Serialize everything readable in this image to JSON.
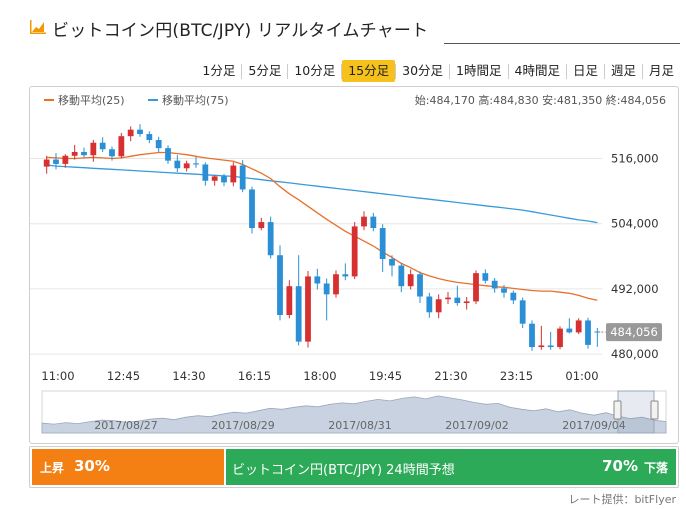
{
  "header": {
    "title": "ビットコイン円(BTC/JPY) リアルタイムチャート",
    "icon": "chart-icon",
    "accent_color": "#f39800"
  },
  "tabs": [
    {
      "label": "1分足",
      "active": false
    },
    {
      "label": "5分足",
      "active": false
    },
    {
      "label": "10分足",
      "active": false
    },
    {
      "label": "15分足",
      "active": true
    },
    {
      "label": "30分足",
      "active": false
    },
    {
      "label": "1時間足",
      "active": false
    },
    {
      "label": "4時間足",
      "active": false
    },
    {
      "label": "日足",
      "active": false
    },
    {
      "label": "週足",
      "active": false
    },
    {
      "label": "月足",
      "active": false
    }
  ],
  "ohlc_text": "始:484,170 高:484,830 安:481,350 終:484,056",
  "chart_data": {
    "type": "candlestick",
    "ylim": [
      478000,
      524000
    ],
    "y_ticks": [
      "516,000",
      "504,000",
      "492,000",
      "480,000"
    ],
    "y_tick_values": [
      516000,
      504000,
      492000,
      480000
    ],
    "x_ticks": [
      "11:00",
      "12:45",
      "14:30",
      "16:15",
      "18:00",
      "19:45",
      "21:30",
      "23:15",
      "01:00"
    ],
    "current_price_label": "484,056",
    "current_price": 484056,
    "legend": [
      {
        "name": "移動平均(25)",
        "color": "#e8702a"
      },
      {
        "name": "移動平均(75)",
        "color": "#3a9ad9"
      }
    ],
    "colors": {
      "up": "#d63031",
      "down": "#2b8fd6"
    },
    "candles": [
      {
        "o": 514500,
        "h": 516500,
        "l": 513200,
        "c": 515800
      },
      {
        "o": 515800,
        "h": 517000,
        "l": 514000,
        "c": 515000
      },
      {
        "o": 515000,
        "h": 516800,
        "l": 514300,
        "c": 516500
      },
      {
        "o": 516500,
        "h": 518500,
        "l": 515800,
        "c": 517200
      },
      {
        "o": 517200,
        "h": 518000,
        "l": 516200,
        "c": 516600
      },
      {
        "o": 516600,
        "h": 519400,
        "l": 515400,
        "c": 518900
      },
      {
        "o": 518900,
        "h": 519900,
        "l": 517200,
        "c": 517700
      },
      {
        "o": 517700,
        "h": 518200,
        "l": 515600,
        "c": 516400
      },
      {
        "o": 516400,
        "h": 520700,
        "l": 516000,
        "c": 520100
      },
      {
        "o": 520100,
        "h": 521900,
        "l": 519200,
        "c": 521300
      },
      {
        "o": 521300,
        "h": 522300,
        "l": 520000,
        "c": 520500
      },
      {
        "o": 520500,
        "h": 521000,
        "l": 518800,
        "c": 519400
      },
      {
        "o": 519400,
        "h": 520000,
        "l": 517200,
        "c": 517900
      },
      {
        "o": 517900,
        "h": 518400,
        "l": 515000,
        "c": 515600
      },
      {
        "o": 515600,
        "h": 516600,
        "l": 513500,
        "c": 514200
      },
      {
        "o": 514200,
        "h": 515600,
        "l": 513600,
        "c": 515100
      },
      {
        "o": 515100,
        "h": 516300,
        "l": 514300,
        "c": 514900
      },
      {
        "o": 514900,
        "h": 515300,
        "l": 511000,
        "c": 511900
      },
      {
        "o": 511900,
        "h": 512900,
        "l": 511000,
        "c": 512700
      },
      {
        "o": 512700,
        "h": 513200,
        "l": 510900,
        "c": 511600
      },
      {
        "o": 511600,
        "h": 515300,
        "l": 510900,
        "c": 514700
      },
      {
        "o": 514700,
        "h": 515700,
        "l": 509800,
        "c": 510300
      },
      {
        "o": 510300,
        "h": 510800,
        "l": 502200,
        "c": 503200
      },
      {
        "o": 503200,
        "h": 505100,
        "l": 502800,
        "c": 504300
      },
      {
        "o": 504300,
        "h": 505300,
        "l": 497600,
        "c": 498200
      },
      {
        "o": 498200,
        "h": 500000,
        "l": 486200,
        "c": 487200
      },
      {
        "o": 487200,
        "h": 493600,
        "l": 486600,
        "c": 492500
      },
      {
        "o": 492500,
        "h": 498200,
        "l": 481600,
        "c": 482300
      },
      {
        "o": 482300,
        "h": 495300,
        "l": 481200,
        "c": 494300
      },
      {
        "o": 494300,
        "h": 495700,
        "l": 491900,
        "c": 493000
      },
      {
        "o": 493000,
        "h": 493900,
        "l": 486200,
        "c": 491000
      },
      {
        "o": 491000,
        "h": 495400,
        "l": 490400,
        "c": 494700
      },
      {
        "o": 494700,
        "h": 496700,
        "l": 493600,
        "c": 494300
      },
      {
        "o": 494300,
        "h": 504300,
        "l": 493800,
        "c": 503500
      },
      {
        "o": 503500,
        "h": 506300,
        "l": 502800,
        "c": 505300
      },
      {
        "o": 505300,
        "h": 506000,
        "l": 502600,
        "c": 503200
      },
      {
        "o": 503200,
        "h": 503900,
        "l": 495100,
        "c": 497500
      },
      {
        "o": 497500,
        "h": 498200,
        "l": 494300,
        "c": 496300
      },
      {
        "o": 496300,
        "h": 496800,
        "l": 491400,
        "c": 492500
      },
      {
        "o": 492500,
        "h": 495600,
        "l": 491900,
        "c": 494700
      },
      {
        "o": 494700,
        "h": 495200,
        "l": 489400,
        "c": 490600
      },
      {
        "o": 490600,
        "h": 491300,
        "l": 486700,
        "c": 487700
      },
      {
        "o": 487700,
        "h": 491000,
        "l": 486600,
        "c": 490100
      },
      {
        "o": 490100,
        "h": 491400,
        "l": 489200,
        "c": 490400
      },
      {
        "o": 490400,
        "h": 492600,
        "l": 488900,
        "c": 489400
      },
      {
        "o": 489400,
        "h": 490500,
        "l": 488200,
        "c": 489700
      },
      {
        "o": 489700,
        "h": 495400,
        "l": 489200,
        "c": 494900
      },
      {
        "o": 494900,
        "h": 495600,
        "l": 493000,
        "c": 493500
      },
      {
        "o": 493500,
        "h": 494000,
        "l": 491300,
        "c": 492100
      },
      {
        "o": 492100,
        "h": 492700,
        "l": 490400,
        "c": 491300
      },
      {
        "o": 491300,
        "h": 491700,
        "l": 489200,
        "c": 489900
      },
      {
        "o": 489900,
        "h": 490400,
        "l": 484800,
        "c": 485600
      },
      {
        "o": 485600,
        "h": 486200,
        "l": 480600,
        "c": 481300
      },
      {
        "o": 481300,
        "h": 485200,
        "l": 480800,
        "c": 481600
      },
      {
        "o": 481600,
        "h": 484100,
        "l": 480800,
        "c": 481300
      },
      {
        "o": 481300,
        "h": 485100,
        "l": 480900,
        "c": 484700
      },
      {
        "o": 484700,
        "h": 486600,
        "l": 483800,
        "c": 484000
      },
      {
        "o": 484000,
        "h": 486600,
        "l": 483700,
        "c": 486200
      },
      {
        "o": 486200,
        "h": 486700,
        "l": 481000,
        "c": 481700
      },
      {
        "o": 484170,
        "h": 484830,
        "l": 481350,
        "c": 484056
      }
    ],
    "ma25": [
      516200,
      516100,
      516000,
      516000,
      516100,
      516200,
      516100,
      516000,
      516100,
      516400,
      516700,
      516900,
      517100,
      517100,
      516900,
      516700,
      516400,
      516100,
      515900,
      515700,
      515500,
      514900,
      514100,
      513300,
      512300,
      510800,
      509500,
      508400,
      507200,
      506000,
      504800,
      503700,
      502600,
      501700,
      500800,
      499900,
      498800,
      497800,
      496700,
      495900,
      495000,
      494400,
      493900,
      493500,
      493200,
      493000,
      492800,
      492600,
      492400,
      492300,
      492100,
      491900,
      491700,
      491600,
      491600,
      491400,
      491200,
      490800,
      490300,
      489900
    ],
    "ma75": [
      514800,
      514600,
      514500,
      514400,
      514300,
      514200,
      514100,
      514000,
      513900,
      513800,
      513700,
      513600,
      513500,
      513400,
      513300,
      513200,
      513100,
      513000,
      512900,
      512800,
      512700,
      512500,
      512300,
      512100,
      511900,
      511700,
      511500,
      511300,
      511100,
      510900,
      510700,
      510500,
      510300,
      510100,
      509900,
      509700,
      509500,
      509300,
      509100,
      508900,
      508700,
      508500,
      508300,
      508100,
      507900,
      507700,
      507500,
      507300,
      507100,
      506900,
      506700,
      506500,
      506200,
      505900,
      505600,
      505300,
      505000,
      504700,
      504500,
      504200
    ],
    "navigator": {
      "dates": [
        "2017/08/27",
        "2017/08/29",
        "2017/08/31",
        "2017/09/02",
        "2017/09/04"
      ],
      "values": [
        480,
        478,
        481,
        479,
        483,
        486,
        485,
        482,
        484,
        488,
        490,
        487,
        492,
        495,
        493,
        498,
        502,
        500,
        505,
        510,
        508,
        512,
        515,
        513,
        518,
        521,
        519,
        524,
        528,
        525,
        530,
        533,
        529,
        535,
        531,
        527,
        522,
        518,
        520,
        512,
        508,
        505,
        509,
        503,
        507,
        500,
        496,
        501,
        494,
        489,
        492,
        486,
        483
      ],
      "ylim": [
        460,
        545
      ]
    }
  },
  "prediction": {
    "up_label": "上昇",
    "up_pct": "30%",
    "title": "ビットコイン円(BTC/JPY) 24時間予想",
    "down_pct": "70%",
    "down_label": "下落",
    "up_color": "#f47f13",
    "down_color": "#2caa58"
  },
  "credit": "レート提供：bitFlyer"
}
